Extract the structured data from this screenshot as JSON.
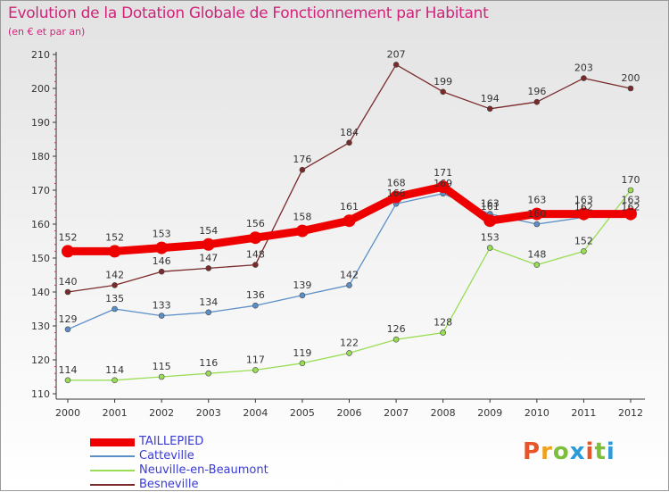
{
  "header": {
    "title": "Evolution de la Dotation Globale de Fonctionnement par Habitant",
    "subtitle": "(en € et par an)"
  },
  "logo": {
    "text": "Proxiti",
    "colors": [
      "#e8542a",
      "#f0a21c",
      "#7cbf3a",
      "#2a9ad8",
      "#e8542a",
      "#7cbf3a",
      "#2a9ad8"
    ]
  },
  "chart_data": {
    "type": "line",
    "x": [
      "2000",
      "2001",
      "2002",
      "2003",
      "2004",
      "2005",
      "2006",
      "2007",
      "2008",
      "2009",
      "2010",
      "2011",
      "2012"
    ],
    "ylim": [
      110,
      210
    ],
    "yticks": [
      110,
      120,
      130,
      140,
      150,
      160,
      170,
      180,
      190,
      200,
      210
    ],
    "grid": false,
    "legend_position": "bottom-left",
    "series": [
      {
        "name": "TAILLEPIED",
        "color": "#ee0000",
        "values": [
          152,
          152,
          153,
          154,
          156,
          158,
          161,
          168,
          171,
          161,
          163,
          163,
          163
        ]
      },
      {
        "name": "Catteville",
        "color": "#5b8fc8",
        "values": [
          129,
          135,
          133,
          134,
          136,
          139,
          142,
          166,
          169,
          163,
          160,
          162,
          162
        ]
      },
      {
        "name": "Neuville-en-Beaumont",
        "color": "#99dd55",
        "values": [
          114,
          114,
          115,
          116,
          117,
          119,
          122,
          126,
          128,
          153,
          148,
          152,
          170
        ]
      },
      {
        "name": "Besneville",
        "color": "#7a2a2a",
        "values": [
          140,
          142,
          146,
          147,
          148,
          176,
          184,
          207,
          199,
          194,
          196,
          203,
          200
        ]
      }
    ]
  }
}
